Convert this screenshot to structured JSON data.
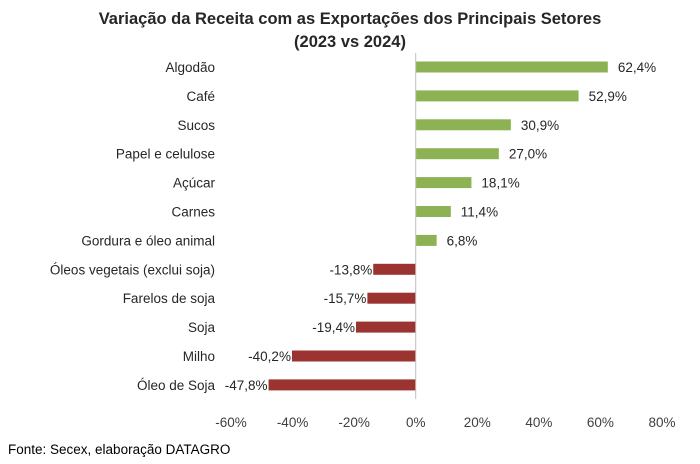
{
  "chart_data": {
    "type": "bar",
    "orientation": "horizontal",
    "title": [
      "Variação da Receita com as Exportações dos Principais Setores",
      "(2023 vs 2024)"
    ],
    "categories": [
      "Algodão",
      "Café",
      "Sucos",
      "Papel e celulose",
      "Açúcar",
      "Carnes",
      "Gordura e óleo animal",
      "Óleos vegetais (exclui soja)",
      "Farelos de soja",
      "Soja",
      "Milho",
      "Óleo de Soja"
    ],
    "values": [
      62.4,
      52.9,
      30.9,
      27.0,
      18.1,
      11.4,
      6.8,
      -13.8,
      -15.7,
      -19.4,
      -40.2,
      -47.8
    ],
    "value_labels": [
      "62,4%",
      "52,9%",
      "30,9%",
      "27,0%",
      "18,1%",
      "11,4%",
      "6,8%",
      "-13,8%",
      "-15,7%",
      "-19,4%",
      "-40,2%",
      "-47,8%"
    ],
    "xlim": [
      -60,
      80
    ],
    "xticks": [
      -60,
      -40,
      -20,
      0,
      20,
      40,
      60,
      80
    ],
    "xtick_labels": [
      "-60%",
      "-40%",
      "-20%",
      "0%",
      "20%",
      "40%",
      "60%",
      "80%"
    ],
    "grid": false,
    "legend": "none",
    "colors": {
      "positive": "#8DB253",
      "negative": "#9B3430",
      "axis": "#BFBFBF"
    }
  },
  "footer": {
    "source": "Fonte: Secex, elaboração DATAGRO"
  }
}
